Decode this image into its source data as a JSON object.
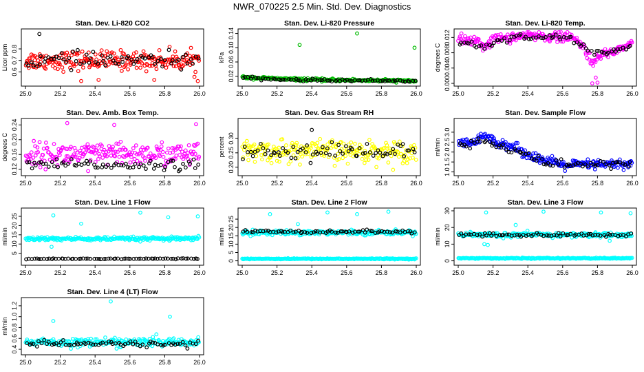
{
  "title": "NWR_070225  2.5 Min. Std. Dev. Diagnostics",
  "colors": {
    "black": "#000000",
    "red": "#ff0000",
    "green": "#00bb00",
    "magenta": "#ff00ff",
    "yellow": "#ffff00",
    "blue": "#0000ff",
    "cyan": "#00ffff"
  },
  "chart_data": [
    {
      "id": "co2",
      "type": "scatter",
      "title": "Stan. Dev. Li-820 CO2",
      "ylabel": "Licor ppm",
      "xlim": [
        25.0,
        26.0
      ],
      "ylim": [
        0.5,
        0.95
      ],
      "xticks": [
        "25.0",
        "25.2",
        "25.4",
        "25.6",
        "25.8",
        "26.0"
      ],
      "yticks": [
        "0.6",
        "0.7",
        "0.8"
      ],
      "series": [
        {
          "name": "main",
          "color": "#ff0000",
          "trend": [
            [
              25.0,
              0.7
            ],
            [
              26.0,
              0.7
            ]
          ],
          "spread": 0.075
        },
        {
          "name": "black",
          "color": "#000000",
          "trend": [
            [
              25.0,
              0.7
            ],
            [
              26.0,
              0.7
            ]
          ],
          "spread": 0.06
        },
        {
          "name": "outliers",
          "color": "#000000",
          "points": [
            [
              25.08,
              0.93
            ]
          ]
        },
        {
          "name": "outliers-red",
          "color": "#ff0000",
          "points": [
            [
              25.42,
              0.53
            ],
            [
              25.99,
              0.52
            ],
            [
              25.32,
              0.52
            ],
            [
              25.74,
              0.53
            ]
          ]
        }
      ]
    },
    {
      "id": "pressure",
      "type": "scatter",
      "title": "Stan. Dev. Li-820 Pressure",
      "ylabel": "kPa",
      "xlim": [
        25.0,
        26.0
      ],
      "ylim": [
        0.0,
        0.145
      ],
      "xticks": [
        "25.0",
        "25.2",
        "25.4",
        "25.6",
        "25.8",
        "26.0"
      ],
      "yticks": [
        "0.02",
        "0.06",
        "0.10",
        "0.14"
      ],
      "series": [
        {
          "name": "main",
          "color": "#00bb00",
          "trend": [
            [
              25.0,
              0.017
            ],
            [
              25.2,
              0.013
            ],
            [
              25.4,
              0.01
            ],
            [
              26.0,
              0.007
            ]
          ],
          "spread": 0.0035
        },
        {
          "name": "black",
          "color": "#000000",
          "trend": [
            [
              25.0,
              0.015
            ],
            [
              25.2,
              0.011
            ],
            [
              25.4,
              0.009
            ],
            [
              26.0,
              0.007
            ]
          ],
          "spread": 0.003
        },
        {
          "name": "outliers",
          "color": "#00bb00",
          "points": [
            [
              25.33,
              0.108
            ],
            [
              25.66,
              0.14
            ],
            [
              25.99,
              0.1
            ]
          ]
        }
      ]
    },
    {
      "id": "temp",
      "type": "scatter",
      "title": "Stan. Dev. Li-820 Temp.",
      "ylabel": "degrees C",
      "xlim": [
        25.0,
        26.0
      ],
      "ylim": [
        0.0,
        0.0135
      ],
      "xticks": [
        "25.0",
        "25.2",
        "25.4",
        "25.6",
        "25.8",
        "26.0"
      ],
      "yticks": [
        "0.000",
        "0.004",
        "0.008",
        "0.012"
      ],
      "series": [
        {
          "name": "main",
          "color": "#ff00ff",
          "trend": [
            [
              25.0,
              0.0115
            ],
            [
              25.1,
              0.011
            ],
            [
              25.15,
              0.0095
            ],
            [
              25.2,
              0.0115
            ],
            [
              25.4,
              0.0125
            ],
            [
              25.65,
              0.012
            ],
            [
              25.72,
              0.0095
            ],
            [
              25.78,
              0.005
            ],
            [
              25.82,
              0.0075
            ],
            [
              25.9,
              0.0085
            ],
            [
              26.0,
              0.0105
            ]
          ],
          "spread": 0.0012
        },
        {
          "name": "black",
          "color": "#000000",
          "trend": [
            [
              25.0,
              0.011
            ],
            [
              25.15,
              0.0095
            ],
            [
              25.3,
              0.0123
            ],
            [
              25.65,
              0.0118
            ],
            [
              25.75,
              0.0085
            ],
            [
              25.85,
              0.008
            ],
            [
              26.0,
              0.0095
            ]
          ],
          "spread": 0.0008
        },
        {
          "name": "outliers",
          "color": "#ff00ff",
          "points": [
            [
              25.77,
              0.0
            ],
            [
              25.8,
              0.0002
            ],
            [
              25.79,
              0.0015
            ]
          ]
        }
      ]
    },
    {
      "id": "ambtemp",
      "type": "scatter",
      "title": "Stan. Dev. Amb. Box Temp.",
      "ylabel": "degrees C",
      "xlim": [
        25.0,
        26.0
      ],
      "ylim": [
        0.11,
        0.25
      ],
      "xticks": [
        "25.0",
        "25.2",
        "25.4",
        "25.6",
        "25.8",
        "26.0"
      ],
      "yticks": [
        "0.12",
        "0.16",
        "0.20",
        "0.24"
      ],
      "series": [
        {
          "name": "main",
          "color": "#ff00ff",
          "trend": [
            [
              25.0,
              0.16
            ],
            [
              26.0,
              0.16
            ]
          ],
          "spread": 0.028
        },
        {
          "name": "black",
          "color": "#000000",
          "trend": [
            [
              25.0,
              0.132
            ],
            [
              26.0,
              0.132
            ]
          ],
          "spread": 0.012
        },
        {
          "name": "outliers",
          "color": "#ff00ff",
          "points": [
            [
              25.24,
              0.245
            ],
            [
              25.98,
              0.242
            ],
            [
              25.51,
              0.24
            ],
            [
              25.36,
              0.115
            ]
          ]
        }
      ]
    },
    {
      "id": "rh",
      "type": "scatter",
      "title": "Stan. Dev. Gas Stream RH",
      "ylabel": "percent",
      "xlim": [
        25.0,
        26.0
      ],
      "ylim": [
        0.18,
        0.36
      ],
      "xticks": [
        "25.0",
        "25.2",
        "25.4",
        "25.6",
        "25.8",
        "26.0"
      ],
      "yticks": [
        "0.20",
        "0.25",
        "0.30"
      ],
      "series": [
        {
          "name": "main",
          "color": "#ffff00",
          "trend": [
            [
              25.0,
              0.255
            ],
            [
              26.0,
              0.255
            ]
          ],
          "spread": 0.035
        },
        {
          "name": "black",
          "color": "#000000",
          "trend": [
            [
              25.0,
              0.255
            ],
            [
              26.0,
              0.255
            ]
          ],
          "spread": 0.025
        },
        {
          "name": "outliers",
          "color": "#000000",
          "points": [
            [
              25.4,
              0.33
            ]
          ]
        }
      ]
    },
    {
      "id": "sampleflow",
      "type": "scatter",
      "title": "Stan. Dev. Sample Flow",
      "ylabel": "ml/min",
      "xlim": [
        25.0,
        26.0
      ],
      "ylim": [
        0.95,
        3.55
      ],
      "xticks": [
        "25.0",
        "25.2",
        "25.4",
        "25.6",
        "25.8",
        "26.0"
      ],
      "yticks": [
        "1.0",
        "1.5",
        "2.0",
        "2.5",
        "3.0"
      ],
      "series": [
        {
          "name": "main",
          "color": "#0000ff",
          "trend": [
            [
              25.0,
              2.4
            ],
            [
              25.1,
              2.5
            ],
            [
              25.15,
              2.8
            ],
            [
              25.2,
              2.6
            ],
            [
              25.3,
              2.3
            ],
            [
              25.4,
              1.9
            ],
            [
              25.5,
              1.55
            ],
            [
              25.6,
              1.35
            ],
            [
              26.0,
              1.4
            ]
          ],
          "spread": 0.22
        },
        {
          "name": "black",
          "color": "#000000",
          "trend": [
            [
              25.0,
              2.3
            ],
            [
              25.15,
              2.6
            ],
            [
              25.3,
              2.1
            ],
            [
              25.5,
              1.5
            ],
            [
              25.6,
              1.35
            ],
            [
              26.0,
              1.4
            ]
          ],
          "spread": 0.2
        }
      ]
    },
    {
      "id": "line1",
      "type": "scatter",
      "title": "Stan. Dev. Line 1 Flow",
      "ylabel": "ml/min",
      "xlim": [
        25.0,
        26.0
      ],
      "ylim": [
        0,
        28
      ],
      "xticks": [
        "25.0",
        "25.2",
        "25.4",
        "25.6",
        "25.8",
        "26.0"
      ],
      "yticks": [
        "5",
        "10",
        "15",
        "20",
        "25"
      ],
      "series": [
        {
          "name": "main",
          "color": "#00ffff",
          "trend": [
            [
              25.0,
              12.8
            ],
            [
              26.0,
              12.8
            ]
          ],
          "spread": 0.9
        },
        {
          "name": "black",
          "color": "#000000",
          "trend": [
            [
              25.0,
              2.0
            ],
            [
              26.0,
              2.0
            ]
          ],
          "spread": 0.25
        },
        {
          "name": "outliers",
          "color": "#00ffff",
          "points": [
            [
              25.16,
              25.5
            ],
            [
              25.32,
              21.0
            ],
            [
              25.66,
              27.0
            ],
            [
              25.82,
              24.5
            ],
            [
              25.99,
              25.0
            ],
            [
              25.15,
              8.5
            ]
          ]
        }
      ]
    },
    {
      "id": "line2",
      "type": "scatter",
      "title": "Stan. Dev. Line 2 Flow",
      "ylabel": "ml/min",
      "xlim": [
        25.0,
        26.0
      ],
      "ylim": [
        -1,
        30
      ],
      "xticks": [
        "25.0",
        "25.2",
        "25.4",
        "25.6",
        "25.8",
        "26.0"
      ],
      "yticks": [
        "0",
        "5",
        "10",
        "15",
        "20",
        "25"
      ],
      "series": [
        {
          "name": "main",
          "color": "#00ffff",
          "trend": [
            [
              25.0,
              17.0
            ],
            [
              26.0,
              17.0
            ]
          ],
          "spread": 1.2
        },
        {
          "name": "low",
          "color": "#00ffff",
          "trend": [
            [
              25.0,
              1.2
            ],
            [
              26.0,
              1.2
            ]
          ],
          "spread": 0.25
        },
        {
          "name": "black",
          "color": "#000000",
          "trend": [
            [
              25.0,
              17.5
            ],
            [
              26.0,
              17.5
            ]
          ],
          "spread": 0.9
        },
        {
          "name": "outliers",
          "color": "#00ffff",
          "points": [
            [
              25.16,
              28.0
            ],
            [
              25.32,
              22.0
            ],
            [
              25.49,
              29.0
            ],
            [
              25.66,
              28.0
            ],
            [
              25.84,
              29.5
            ]
          ]
        }
      ]
    },
    {
      "id": "line3",
      "type": "scatter",
      "title": "Stan. Dev. Line 3 Flow",
      "ylabel": "ml/min",
      "xlim": [
        25.0,
        26.0
      ],
      "ylim": [
        -1,
        30
      ],
      "xticks": [
        "25.0",
        "25.2",
        "25.4",
        "25.6",
        "25.8",
        "26.0"
      ],
      "yticks": [
        "0",
        "10",
        "20",
        "30"
      ],
      "series": [
        {
          "name": "main",
          "color": "#00ffff",
          "trend": [
            [
              25.0,
              15.5
            ],
            [
              26.0,
              15.5
            ]
          ],
          "spread": 1.3
        },
        {
          "name": "low",
          "color": "#00ffff",
          "trend": [
            [
              25.0,
              1.5
            ],
            [
              26.0,
              1.5
            ]
          ],
          "spread": 0.3
        },
        {
          "name": "black",
          "color": "#000000",
          "trend": [
            [
              25.0,
              15.5
            ],
            [
              26.0,
              15.5
            ]
          ],
          "spread": 1.0
        },
        {
          "name": "outliers",
          "color": "#00ffff",
          "points": [
            [
              25.16,
              29.0
            ],
            [
              25.49,
              29.5
            ],
            [
              25.82,
              29.0
            ],
            [
              25.99,
              28.5
            ],
            [
              25.33,
              21.5
            ],
            [
              25.15,
              10.0
            ],
            [
              25.17,
              9.5
            ],
            [
              25.87,
              12.0
            ]
          ]
        }
      ]
    },
    {
      "id": "line4",
      "type": "scatter",
      "title": "Stan. Dev. Line 4 (LT) Flow",
      "ylabel": "ml/min",
      "xlim": [
        25.0,
        26.0
      ],
      "ylim": [
        0.35,
        1.3
      ],
      "xticks": [
        "25.0",
        "25.2",
        "25.4",
        "25.6",
        "25.8",
        "26.0"
      ],
      "yticks": [
        "0.4",
        "0.6",
        "0.8",
        "1.0",
        "1.2"
      ],
      "series": [
        {
          "name": "main",
          "color": "#00ffff",
          "trend": [
            [
              25.0,
              0.53
            ],
            [
              26.0,
              0.53
            ]
          ],
          "spread": 0.07
        },
        {
          "name": "black",
          "color": "#000000",
          "trend": [
            [
              25.0,
              0.5
            ],
            [
              26.0,
              0.5
            ]
          ],
          "spread": 0.05
        },
        {
          "name": "outliers",
          "color": "#00ffff",
          "points": [
            [
              25.49,
              1.28
            ],
            [
              25.83,
              1.0
            ],
            [
              25.16,
              0.92
            ]
          ]
        }
      ]
    }
  ]
}
